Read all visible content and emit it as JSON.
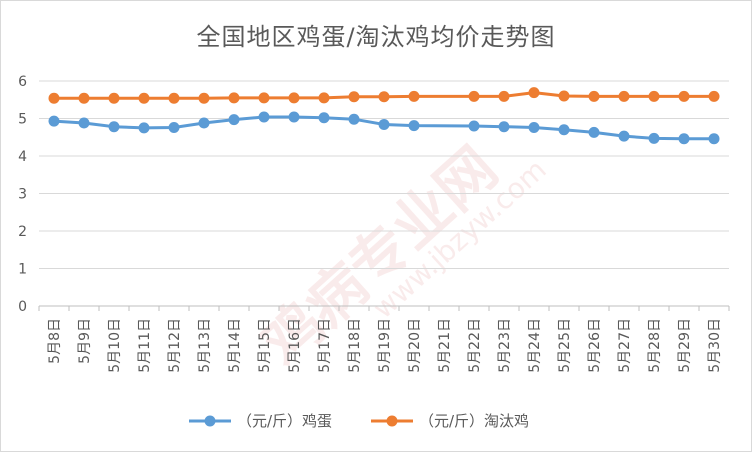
{
  "chart_data": {
    "type": "line",
    "title": "全国地区鸡蛋/淘汰鸡均价走势图",
    "categories": [
      "5月8日",
      "5月9日",
      "5月10日",
      "5月11日",
      "5月12日",
      "5月13日",
      "5月14日",
      "5月15日",
      "5月16日",
      "5月17日",
      "5月18日",
      "5月19日",
      "5月20日",
      "5月21日",
      "5月22日",
      "5月23日",
      "5月24日",
      "5月25日",
      "5月26日",
      "5月27日",
      "5月28日",
      "5月29日",
      "5月30日"
    ],
    "series": [
      {
        "name": "（元/斤）鸡蛋",
        "color": "#5b9bd5",
        "values": [
          4.93,
          4.88,
          4.78,
          4.75,
          4.76,
          4.88,
          4.97,
          5.04,
          5.04,
          5.02,
          4.98,
          4.84,
          4.81,
          null,
          4.8,
          4.78,
          4.76,
          4.7,
          4.63,
          4.53,
          4.47,
          4.46,
          4.46
        ]
      },
      {
        "name": "（元/斤）淘汰鸡",
        "color": "#ed7d31",
        "values": [
          5.54,
          5.54,
          5.54,
          5.54,
          5.54,
          5.54,
          5.55,
          5.55,
          5.55,
          5.55,
          5.58,
          5.58,
          5.59,
          null,
          5.59,
          5.59,
          5.69,
          5.6,
          5.59,
          5.59,
          5.59,
          5.59,
          5.59
        ]
      }
    ],
    "ylim": [
      0,
      6
    ],
    "yticks": [
      0,
      1,
      2,
      3,
      4,
      5,
      6
    ],
    "grid": true,
    "legend_position": "bottom"
  },
  "watermark": {
    "text_main": "鸡病专业网",
    "text_url": "www.jbzyw.com"
  }
}
